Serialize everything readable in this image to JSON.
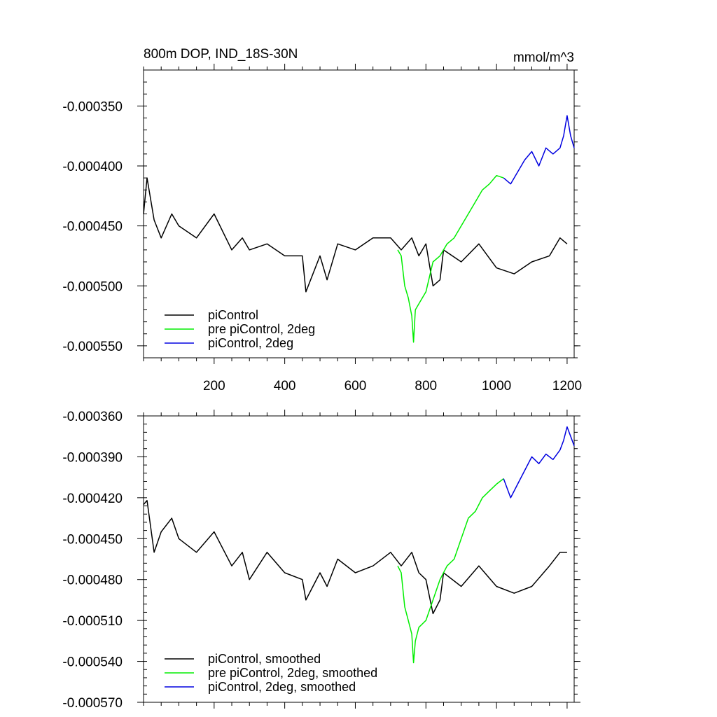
{
  "colors": {
    "piControl": "#000000",
    "pre_piControl_2deg": "#00ee00",
    "piControl_2deg": "#0000e0"
  },
  "chart_data": [
    {
      "type": "line",
      "title": "800m DOP, IND_18S-30N",
      "units": "mmol/m^3",
      "xlim": [
        0,
        1220
      ],
      "ylim": [
        -0.00056,
        -0.00032
      ],
      "xticks": [
        200,
        400,
        600,
        800,
        1000,
        1200
      ],
      "xtick_labels": [
        "200",
        "400",
        "600",
        "800",
        "1000",
        "1200"
      ],
      "yticks": [
        -0.00035,
        -0.0004,
        -0.00045,
        -0.0005,
        -0.00055
      ],
      "ytick_labels": [
        "-0.000350",
        "-0.000400",
        "-0.000450",
        "-0.000500",
        "-0.000550"
      ],
      "legend": [
        "piControl",
        "pre piControl, 2deg",
        "piControl, 2deg"
      ],
      "legend_position": "bottom-left",
      "series": [
        {
          "name": "piControl",
          "color": "#000000",
          "x": [
            0,
            10,
            30,
            50,
            80,
            100,
            150,
            200,
            250,
            280,
            300,
            350,
            400,
            450,
            460,
            500,
            520,
            550,
            600,
            650,
            700,
            730,
            760,
            780,
            800,
            820,
            840,
            850,
            900,
            950,
            1000,
            1050,
            1100,
            1150,
            1180,
            1200
          ],
          "y": [
            -0.00044,
            -0.00041,
            -0.000445,
            -0.00046,
            -0.00044,
            -0.00045,
            -0.00046,
            -0.00044,
            -0.00047,
            -0.00046,
            -0.00047,
            -0.000465,
            -0.000475,
            -0.000475,
            -0.000505,
            -0.000475,
            -0.000495,
            -0.000465,
            -0.00047,
            -0.00046,
            -0.00046,
            -0.00047,
            -0.00046,
            -0.000475,
            -0.000465,
            -0.0005,
            -0.000495,
            -0.00047,
            -0.00048,
            -0.000465,
            -0.000485,
            -0.00049,
            -0.00048,
            -0.000475,
            -0.00046,
            -0.000465
          ]
        },
        {
          "name": "pre piControl, 2deg",
          "color": "#00ee00",
          "x": [
            720,
            730,
            740,
            750,
            760,
            765,
            770,
            780,
            800,
            820,
            840,
            860,
            880,
            900,
            920,
            940,
            960,
            980,
            1000,
            1020
          ],
          "y": [
            -0.00047,
            -0.000475,
            -0.0005,
            -0.00051,
            -0.000525,
            -0.000547,
            -0.00052,
            -0.000515,
            -0.000505,
            -0.00048,
            -0.000475,
            -0.000465,
            -0.00046,
            -0.00045,
            -0.00044,
            -0.00043,
            -0.00042,
            -0.000415,
            -0.000408,
            -0.00041
          ]
        },
        {
          "name": "piControl, 2deg",
          "color": "#0000e0",
          "x": [
            1020,
            1040,
            1060,
            1080,
            1100,
            1120,
            1140,
            1160,
            1180,
            1190,
            1200,
            1210,
            1220
          ],
          "y": [
            -0.00041,
            -0.000415,
            -0.000405,
            -0.000395,
            -0.000388,
            -0.0004,
            -0.000385,
            -0.00039,
            -0.000385,
            -0.000375,
            -0.000358,
            -0.000375,
            -0.000385
          ]
        }
      ]
    },
    {
      "type": "line",
      "xlim": [
        0,
        1220
      ],
      "ylim": [
        -0.00057,
        -0.00036
      ],
      "yticks": [
        -0.00036,
        -0.00039,
        -0.00042,
        -0.00045,
        -0.00048,
        -0.00051,
        -0.00054,
        -0.00057
      ],
      "ytick_labels": [
        "-0.000360",
        "-0.000390",
        "-0.000420",
        "-0.000450",
        "-0.000480",
        "-0.000510",
        "-0.000540",
        "-0.000570"
      ],
      "legend": [
        "piControl, smoothed",
        "pre piControl, 2deg, smoothed",
        "piControl, 2deg, smoothed"
      ],
      "legend_position": "bottom-left",
      "series": [
        {
          "name": "piControl, smoothed",
          "color": "#000000",
          "x": [
            0,
            10,
            30,
            50,
            80,
            100,
            150,
            200,
            250,
            280,
            300,
            350,
            400,
            450,
            460,
            500,
            520,
            550,
            600,
            650,
            700,
            730,
            760,
            780,
            800,
            820,
            840,
            850,
            900,
            950,
            1000,
            1050,
            1100,
            1150,
            1180,
            1200
          ],
          "y": [
            -0.000425,
            -0.000422,
            -0.00046,
            -0.000445,
            -0.000435,
            -0.00045,
            -0.00046,
            -0.000445,
            -0.00047,
            -0.00046,
            -0.00048,
            -0.00046,
            -0.000475,
            -0.00048,
            -0.000495,
            -0.000475,
            -0.000485,
            -0.000465,
            -0.000475,
            -0.00047,
            -0.00046,
            -0.00047,
            -0.00046,
            -0.000475,
            -0.00048,
            -0.000505,
            -0.000495,
            -0.000475,
            -0.000485,
            -0.00047,
            -0.000485,
            -0.00049,
            -0.000485,
            -0.00047,
            -0.00046,
            -0.00046
          ]
        },
        {
          "name": "pre piControl, 2deg, smoothed",
          "color": "#00ee00",
          "x": [
            720,
            730,
            740,
            750,
            760,
            765,
            770,
            780,
            800,
            820,
            840,
            860,
            880,
            900,
            920,
            940,
            960,
            980,
            1000,
            1020
          ],
          "y": [
            -0.00047,
            -0.000475,
            -0.0005,
            -0.00051,
            -0.00052,
            -0.000541,
            -0.000525,
            -0.000515,
            -0.00051,
            -0.000495,
            -0.00048,
            -0.00047,
            -0.000465,
            -0.00045,
            -0.000435,
            -0.00043,
            -0.00042,
            -0.000415,
            -0.00041,
            -0.000406
          ]
        },
        {
          "name": "piControl, 2deg, smoothed",
          "color": "#0000e0",
          "x": [
            1020,
            1040,
            1060,
            1080,
            1100,
            1120,
            1140,
            1160,
            1180,
            1190,
            1200,
            1210,
            1220
          ],
          "y": [
            -0.000406,
            -0.00042,
            -0.00041,
            -0.0004,
            -0.00039,
            -0.000395,
            -0.000388,
            -0.000392,
            -0.000385,
            -0.000378,
            -0.000368,
            -0.000375,
            -0.000382
          ]
        }
      ]
    }
  ]
}
